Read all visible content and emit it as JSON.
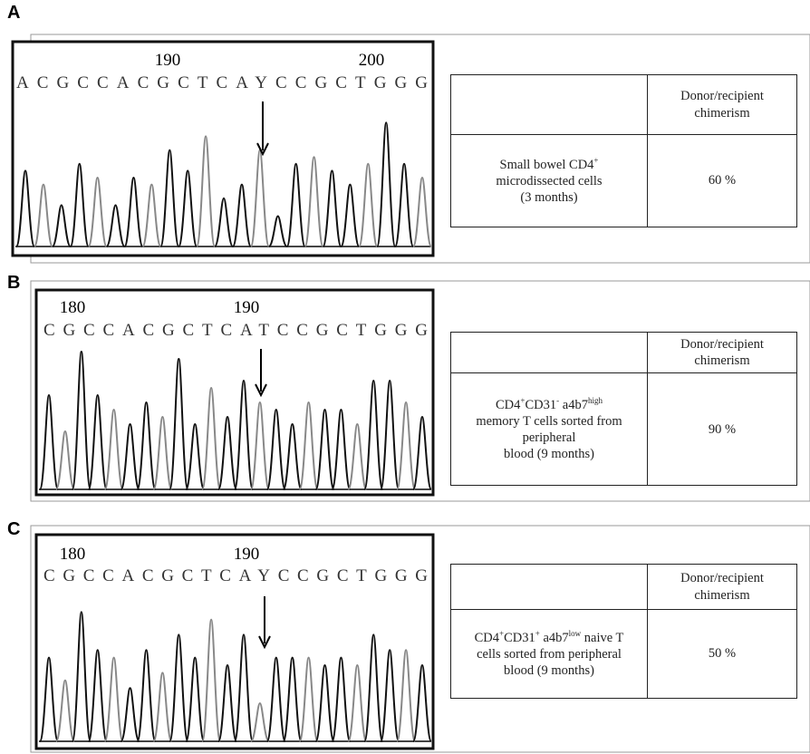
{
  "panels": [
    {
      "label": "A",
      "positions": [
        190,
        200
      ],
      "sequence": "ACGCCACGCTCAYCCGCTGGG",
      "table": {
        "header": "Donor/recipient chimerism",
        "row_label": [
          [
            {
              "text": "Small bowel CD4"
            },
            {
              "sup": "+"
            }
          ],
          [
            {
              "text": "microdissected cells"
            }
          ],
          [
            {
              "text": "(3 months)"
            }
          ]
        ],
        "value": "60 %"
      }
    },
    {
      "label": "B",
      "positions": [
        180,
        190
      ],
      "sequence": "CGCCACGCTCATCCGCTGGG",
      "table": {
        "header": "Donor/recipient chimerism",
        "row_label": [
          [
            {
              "text": "CD4"
            },
            {
              "sup": "+"
            },
            {
              "text": "CD31"
            },
            {
              "sup": "-"
            },
            {
              "text": " a4b7"
            },
            {
              "sup": "high"
            }
          ],
          [
            {
              "text": "memory T cells sorted from"
            }
          ],
          [
            {
              "text": "peripheral"
            }
          ],
          [
            {
              "text": "blood (9 months)"
            }
          ]
        ],
        "value": "90 %"
      }
    },
    {
      "label": "C",
      "positions": [
        180,
        190
      ],
      "sequence": "CGCCACGCTCAYCCGCTGGG",
      "table": {
        "header": "Donor/recipient chimerism",
        "row_label": [
          [
            {
              "text": "CD4"
            },
            {
              "sup": "+"
            },
            {
              "text": "CD31"
            },
            {
              "sup": "+"
            },
            {
              "text": " a4b7"
            },
            {
              "sup": "low"
            },
            {
              "text": " naive T"
            }
          ],
          [
            {
              "text": "cells sorted from peripheral"
            }
          ],
          [
            {
              "text": "blood (9 months)"
            }
          ]
        ],
        "value": "50 %"
      }
    }
  ]
}
